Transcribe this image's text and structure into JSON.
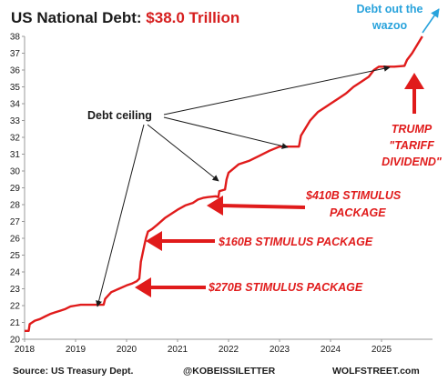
{
  "chart_data": {
    "type": "line",
    "title_prefix": "US National Debt: ",
    "title_highlight": "$38.0 Trillion",
    "ylim": [
      20,
      38
    ],
    "xlim": [
      2018,
      2026
    ],
    "yticks": [
      "20",
      "21",
      "22",
      "23",
      "24",
      "25",
      "26",
      "27",
      "28",
      "29",
      "30",
      "31",
      "32",
      "33",
      "34",
      "35",
      "36",
      "37",
      "38"
    ],
    "xticks": [
      "2018",
      "2019",
      "2020",
      "2021",
      "2022",
      "2023",
      "2024",
      "2025"
    ],
    "grid": false,
    "colors": {
      "line": "#e01b1b",
      "annotation": "#e01b1b",
      "wazoo": "#29a3dc",
      "text": "#1a1a1a"
    },
    "series": [
      {
        "x": [
          2018.0,
          2018.08,
          2018.1,
          2018.2,
          2018.3,
          2018.4,
          2018.5,
          2018.6,
          2018.7,
          2018.8,
          2018.9,
          2019.0,
          2019.1,
          2019.2,
          2019.4,
          2019.55,
          2019.58,
          2019.7,
          2019.85,
          2020.0,
          2020.1,
          2020.2,
          2020.25,
          2020.28,
          2020.35,
          2020.38,
          2020.42,
          2020.5,
          2020.6,
          2020.75,
          2020.9,
          2021.0,
          2021.15,
          2021.3,
          2021.4,
          2021.5,
          2021.6,
          2021.75,
          2021.8,
          2021.82,
          2021.93,
          2021.96,
          2022.0,
          2022.2,
          2022.4,
          2022.6,
          2022.8,
          2023.0,
          2023.2,
          2023.38,
          2023.42,
          2023.5,
          2023.6,
          2023.75,
          2023.9,
          2024.0,
          2024.15,
          2024.3,
          2024.45,
          2024.6,
          2024.75,
          2024.85,
          2024.95,
          2025.0,
          2025.25,
          2025.45,
          2025.5,
          2025.6,
          2025.7,
          2025.77,
          2025.8
        ],
        "values": [
          20.5,
          20.5,
          20.9,
          21.1,
          21.2,
          21.35,
          21.5,
          21.6,
          21.7,
          21.8,
          21.95,
          22.0,
          22.05,
          22.05,
          22.05,
          22.05,
          22.4,
          22.8,
          23.0,
          23.2,
          23.3,
          23.45,
          23.6,
          24.6,
          25.6,
          26.0,
          26.4,
          26.55,
          26.8,
          27.2,
          27.5,
          27.7,
          27.95,
          28.1,
          28.3,
          28.4,
          28.45,
          28.5,
          28.45,
          28.8,
          28.9,
          29.5,
          29.9,
          30.4,
          30.6,
          30.9,
          31.2,
          31.45,
          31.45,
          31.45,
          32.1,
          32.5,
          33.0,
          33.5,
          33.8,
          34.0,
          34.3,
          34.6,
          35.0,
          35.3,
          35.6,
          36.0,
          36.2,
          36.2,
          36.2,
          36.25,
          36.6,
          37.0,
          37.5,
          37.85,
          38.0
        ]
      }
    ],
    "annotations": {
      "debt_ceiling": "Debt ceiling",
      "stimulus_410": "$410B STIMULUS",
      "package_410": "PACKAGE",
      "stimulus_160": "$160B STIMULUS PACKAGE",
      "stimulus_270": "$270B STIMULUS PACKAGE",
      "trump_line1": "TRUMP",
      "trump_line2": "\"TARIFF",
      "trump_line3": "DIVIDEND\"",
      "wazoo_line1": "Debt out the",
      "wazoo_line2": "wazoo"
    }
  },
  "footer": {
    "source": "Source: US Treasury Dept.",
    "handle": "@KOBEISSILETTER",
    "site": "WOLFSTREET.com"
  }
}
